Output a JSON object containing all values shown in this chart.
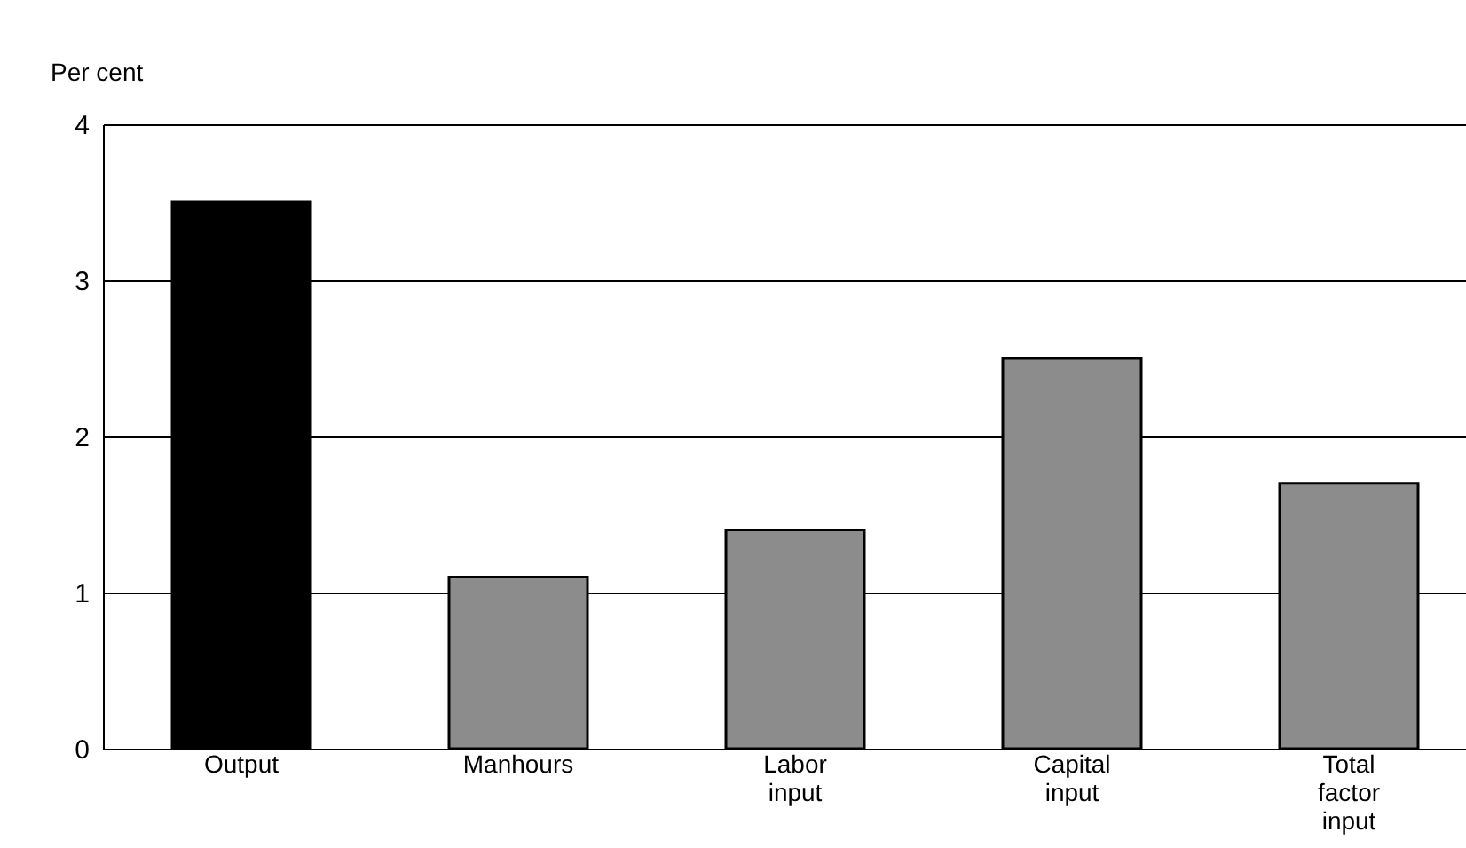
{
  "chart_data": {
    "type": "bar",
    "ylabel": "Per cent",
    "categories": [
      "Output",
      "Manhours",
      "Labor input",
      "Capital input",
      "Total factor input"
    ],
    "values": [
      3.5,
      1.1,
      1.4,
      2.5,
      1.7
    ],
    "colors": [
      "#000000",
      "#8c8c8c",
      "#8c8c8c",
      "#8c8c8c",
      "#8c8c8c"
    ],
    "ylim": [
      0,
      4
    ],
    "yticks": [
      0,
      1,
      2,
      3,
      4
    ],
    "grid": "y"
  }
}
